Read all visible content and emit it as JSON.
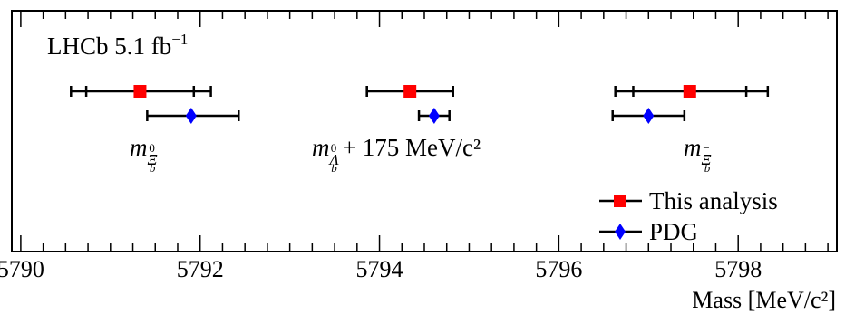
{
  "chart_data": {
    "type": "scatter",
    "xlabel": "Mass [MeV/c²]",
    "xlim": [
      5789.9,
      5799.1
    ],
    "xticks": [
      5790,
      5792,
      5794,
      5796,
      5798
    ],
    "y_axis_visible": false,
    "annotation": {
      "experiment": "LHCb",
      "lumi_value": "5.1",
      "lumi_unit": "fb",
      "lumi_exp": "−1"
    },
    "legend": {
      "position": "bottom-right"
    },
    "groups": [
      {
        "id": "xib0",
        "label_main": "m",
        "label_sub": "Ξ",
        "label_subsub": "b",
        "label_sup": "0",
        "label_extra": ""
      },
      {
        "id": "lambdab",
        "label_main": "m",
        "label_sub": "Λ",
        "label_subsub": "b",
        "label_sup": "0",
        "label_extra": "+ 175 MeV/c²"
      },
      {
        "id": "xibm",
        "label_main": "m",
        "label_sub": "Ξ",
        "label_subsub": "b",
        "label_sup": "−",
        "label_extra": ""
      }
    ],
    "series": [
      {
        "name": "This analysis",
        "marker": "square",
        "color": "#ff0000",
        "points": [
          {
            "group": "xib0",
            "x": 5791.33,
            "stat_err": [
              5790.73,
              5791.93
            ],
            "tot_err": [
              5790.56,
              5792.12
            ]
          },
          {
            "group": "lambdab",
            "x": 5794.34,
            "stat_err": [
              5793.86,
              5794.82
            ],
            "tot_err": [
              5793.86,
              5794.82
            ]
          },
          {
            "group": "xibm",
            "x": 5797.46,
            "stat_err": [
              5796.83,
              5798.09
            ],
            "tot_err": [
              5796.63,
              5798.33
            ]
          }
        ]
      },
      {
        "name": "PDG",
        "marker": "diamond",
        "color": "#0000ff",
        "points": [
          {
            "group": "xib0",
            "x": 5791.9,
            "tot_err": [
              5791.41,
              5792.43
            ]
          },
          {
            "group": "lambdab",
            "x": 5794.61,
            "tot_err": [
              5794.44,
              5794.78
            ]
          },
          {
            "group": "xibm",
            "x": 5797.0,
            "tot_err": [
              5796.6,
              5797.4
            ]
          }
        ]
      }
    ]
  }
}
